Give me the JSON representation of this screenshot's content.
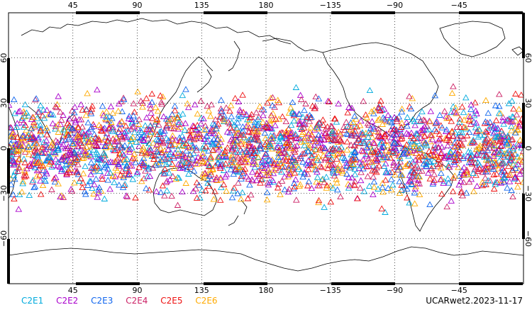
{
  "map": {
    "projection": "equirectangular",
    "lon_center": 180,
    "lat_range": [
      -90,
      90
    ],
    "lon_ticks": [
      "45",
      "90",
      "135",
      "180",
      "−135",
      "−90",
      "−45"
    ],
    "lat_ticks": [
      "60",
      "30",
      "0",
      "−30",
      "−60"
    ],
    "grid": "dotted",
    "marker": "open-triangle"
  },
  "legend": [
    {
      "label": "C2E1",
      "color": "#00aadd"
    },
    {
      "label": "C2E2",
      "color": "#aa00cc"
    },
    {
      "label": "C2E3",
      "color": "#1166ee"
    },
    {
      "label": "C2E4",
      "color": "#cc2266"
    },
    {
      "label": "C2E5",
      "color": "#ee1111"
    },
    {
      "label": "C2E6",
      "color": "#ffaa00"
    }
  ],
  "stamp": "UCARwet2.2023-11-17",
  "observation_band": {
    "lat_min": -45,
    "lat_max": 45,
    "lon_min": 0,
    "lon_max": 360
  }
}
